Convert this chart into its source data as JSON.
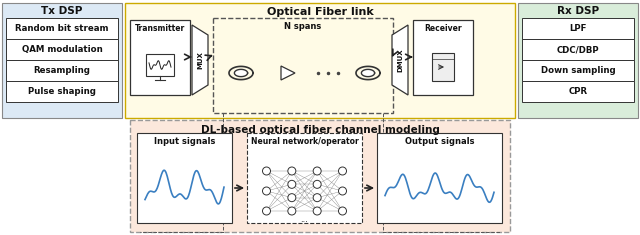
{
  "tx_dsp_title": "Tx DSP",
  "tx_dsp_items": [
    "Random bit stream",
    "QAM modulation",
    "Resampling",
    "Pulse shaping"
  ],
  "tx_dsp_bg": "#dce9f5",
  "rx_dsp_title": "Rx DSP",
  "rx_dsp_items": [
    "LPF",
    "CDC/DBP",
    "Down sampling",
    "CPR"
  ],
  "rx_dsp_bg": "#d9edda",
  "optical_title": "Optical Fiber link",
  "optical_bg": "#fffbe6",
  "dl_title": "DL-based optical fiber channel modeling",
  "dl_bg": "#fce8dc",
  "arrow_color": "#222222",
  "box_edge": "#222222",
  "text_color": "#111111",
  "blue_signal": "#3a7fc1",
  "signal_color": "#3a7fc1"
}
